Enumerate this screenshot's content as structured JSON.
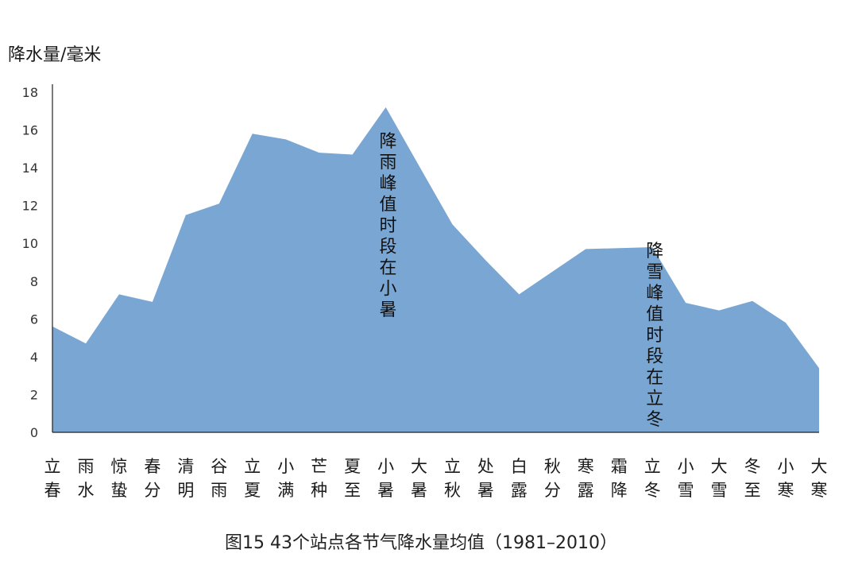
{
  "chart_data": {
    "type": "area",
    "title": "",
    "caption": "图15  43个站点各节气降水量均值（1981–2010）",
    "ylabel": "降水量/毫米",
    "xlabel": "",
    "ylim": [
      0,
      18
    ],
    "yticks": [
      0,
      2,
      4,
      6,
      8,
      10,
      12,
      14,
      16,
      18
    ],
    "grid": false,
    "legend": "none",
    "categories": [
      "立春",
      "雨水",
      "惊蛰",
      "春分",
      "清明",
      "谷雨",
      "立夏",
      "小满",
      "芒种",
      "夏至",
      "小暑",
      "大暑",
      "立秋",
      "处暑",
      "白露",
      "秋分",
      "寒露",
      "霜降",
      "立冬",
      "小雪",
      "大雪",
      "冬至",
      "小寒",
      "大寒"
    ],
    "series": [
      {
        "values": [
          5.6,
          4.7,
          7.3,
          6.9,
          11.5,
          12.1,
          15.8,
          15.5,
          14.8,
          14.7,
          17.2,
          14.1,
          11.0,
          9.1,
          7.3,
          8.5,
          9.7,
          9.75,
          9.8,
          6.85,
          6.45,
          6.95,
          5.8,
          3.4
        ]
      }
    ],
    "annotations": [
      {
        "text": "降雨峰值时段在小暑",
        "category": "小暑",
        "y": 15.1
      },
      {
        "text": "降雪峰值时段在立冬",
        "category": "立冬",
        "y": 9.3
      }
    ],
    "colors": {
      "area": "#79a6d2",
      "axis": "#222222"
    }
  }
}
